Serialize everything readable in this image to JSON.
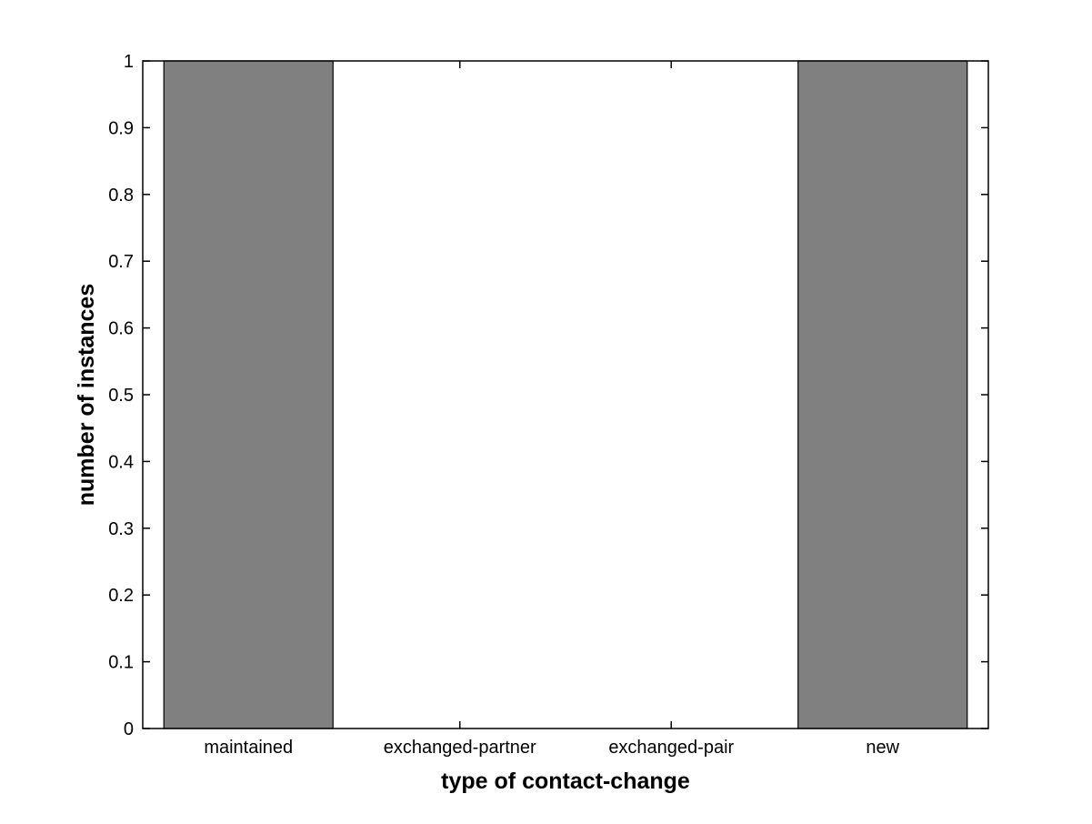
{
  "figure": {
    "background": "#ffffff",
    "title": ""
  },
  "chart_data": {
    "type": "bar",
    "title": "",
    "xlabel": "type of contact-change",
    "ylabel": "number of instances",
    "categories": [
      "maintained",
      "exchanged-partner",
      "exchanged-pair",
      "new"
    ],
    "values": [
      1,
      0,
      0,
      1
    ],
    "ylim": [
      0,
      1
    ],
    "yticks": [
      0,
      0.1,
      0.2,
      0.3,
      0.4,
      0.5,
      0.6,
      0.7,
      0.8,
      0.9,
      1
    ],
    "ytick_labels": [
      "0",
      "0.1",
      "0.2",
      "0.3",
      "0.4",
      "0.5",
      "0.6",
      "0.7",
      "0.8",
      "0.9",
      "1"
    ],
    "grid": false,
    "legend": null,
    "bar_width_fraction": 0.8,
    "colors": {
      "bar_fill": "#808080",
      "bar_edge": "#000000",
      "axis": "#000000",
      "background": "#ffffff"
    }
  }
}
